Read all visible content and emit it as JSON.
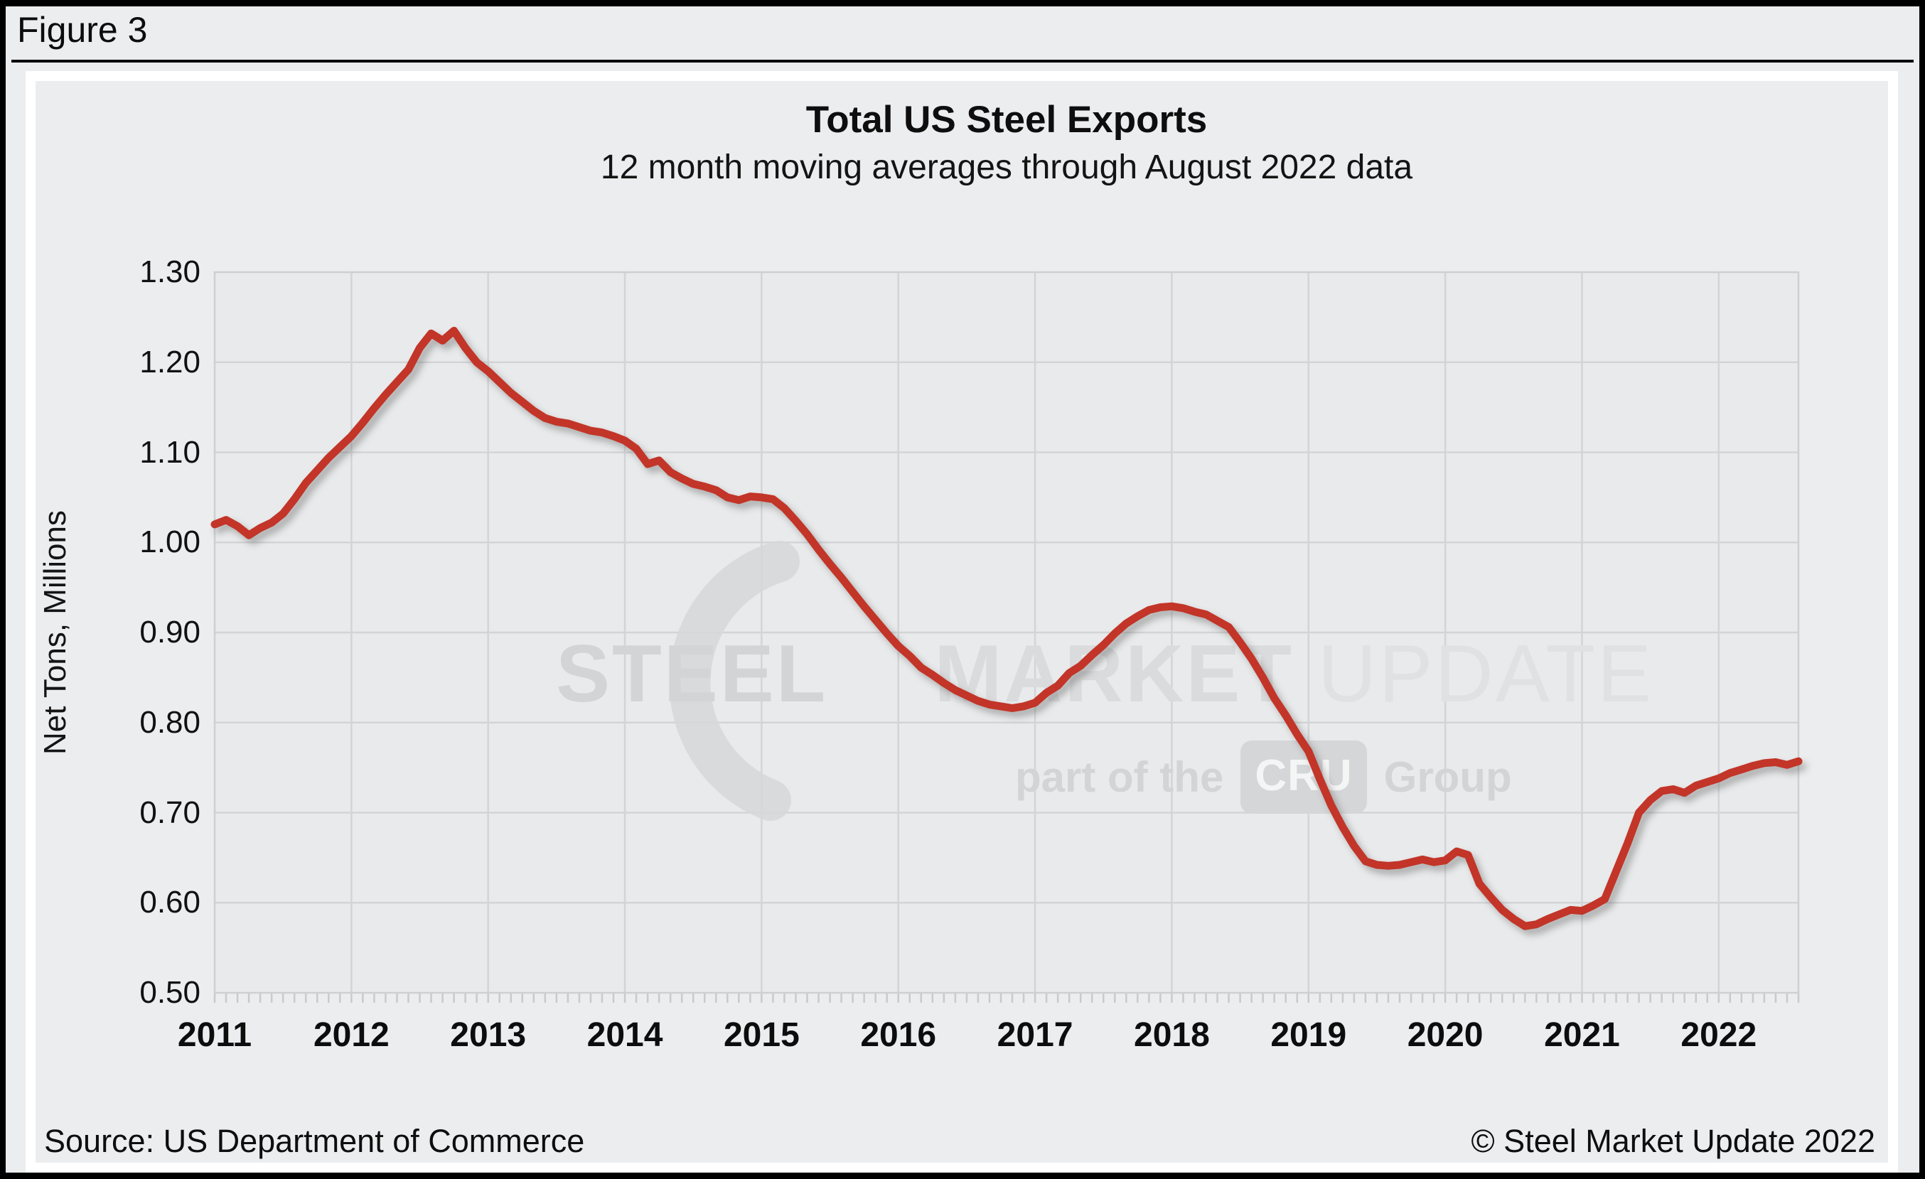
{
  "figure_label": "Figure 3",
  "header": {
    "title": "Total US Steel Exports",
    "subtitle": "12 month moving averages through August 2022 data"
  },
  "footer": {
    "source": "Source: US Department of Commerce",
    "copyright": "© Steel Market Update 2022"
  },
  "watermark": {
    "word1": "STEEL",
    "word2": "MARKET",
    "word3": "UPDATE",
    "tagline_prefix": "part of the",
    "tagline_box": "CRU",
    "tagline_suffix": "Group"
  },
  "colors": {
    "line": "#C23528",
    "grid": "#D2D4D6",
    "axis_border": "#CDCFD1",
    "tick": "#C8CACC",
    "plot_bg": "#E9EAEB",
    "page_bg": "#ECEDEE",
    "frame": "#FFFFFF",
    "watermark": "#D7D8DA",
    "text": "#141414"
  },
  "chart_data": {
    "type": "line",
    "title": "Total US Steel Exports",
    "subtitle": "12 month moving averages through August 2022 data",
    "xlabel": "",
    "ylabel": "Net Tons, Millions",
    "ylim": [
      0.5,
      1.3
    ],
    "ytick_step": 0.1,
    "ytick_decimals": 2,
    "grid": true,
    "legend": false,
    "x_unit": "month",
    "x_start": "2011-01",
    "x_end": "2022-08",
    "x_tick_labels": [
      "2011",
      "2012",
      "2013",
      "2014",
      "2015",
      "2016",
      "2017",
      "2018",
      "2019",
      "2020",
      "2021",
      "2022"
    ],
    "months_per_major_tick": 12,
    "series": [
      {
        "name": "Total US steel exports, 12-month moving average",
        "color": "#C23528",
        "monthly_values": [
          1.02,
          1.025,
          1.018,
          1.008,
          1.016,
          1.022,
          1.032,
          1.048,
          1.066,
          1.08,
          1.094,
          1.106,
          1.118,
          1.133,
          1.149,
          1.164,
          1.178,
          1.192,
          1.216,
          1.232,
          1.224,
          1.235,
          1.216,
          1.2,
          1.19,
          1.178,
          1.166,
          1.156,
          1.146,
          1.138,
          1.134,
          1.132,
          1.128,
          1.124,
          1.122,
          1.118,
          1.113,
          1.104,
          1.087,
          1.091,
          1.078,
          1.071,
          1.065,
          1.062,
          1.058,
          1.05,
          1.047,
          1.051,
          1.05,
          1.048,
          1.038,
          1.024,
          1.009,
          0.992,
          0.976,
          0.961,
          0.945,
          0.929,
          0.914,
          0.899,
          0.885,
          0.874,
          0.861,
          0.853,
          0.844,
          0.836,
          0.83,
          0.824,
          0.82,
          0.818,
          0.816,
          0.818,
          0.822,
          0.833,
          0.841,
          0.855,
          0.863,
          0.875,
          0.886,
          0.899,
          0.91,
          0.918,
          0.925,
          0.928,
          0.929,
          0.927,
          0.923,
          0.92,
          0.913,
          0.906,
          0.889,
          0.871,
          0.85,
          0.827,
          0.808,
          0.787,
          0.768,
          0.737,
          0.708,
          0.684,
          0.663,
          0.646,
          0.642,
          0.641,
          0.642,
          0.645,
          0.648,
          0.645,
          0.647,
          0.657,
          0.653,
          0.621,
          0.606,
          0.592,
          0.582,
          0.574,
          0.576,
          0.582,
          0.587,
          0.592,
          0.591,
          0.597,
          0.604,
          0.635,
          0.666,
          0.7,
          0.714,
          0.724,
          0.726,
          0.722,
          0.73,
          0.734,
          0.738,
          0.744,
          0.748,
          0.752,
          0.755,
          0.756,
          0.753,
          0.757
        ]
      }
    ]
  }
}
